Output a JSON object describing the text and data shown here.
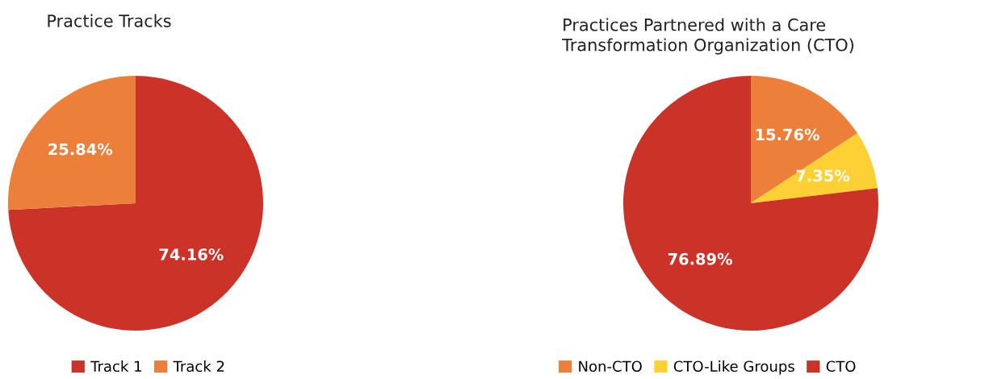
{
  "chart_data": [
    {
      "type": "pie",
      "title": "Practice Tracks",
      "categories": [
        "Track 1",
        "Track 2"
      ],
      "values": [
        74.16,
        25.84
      ],
      "colors": [
        "#cc3328",
        "#ec7f3a"
      ],
      "value_labels": [
        "74.16%",
        "25.84%"
      ],
      "legend": "bottom"
    },
    {
      "type": "pie",
      "title": "Practices Partnered with a Care\nTransformation Organization (CTO)",
      "categories": [
        "Non-CTO",
        "CTO-Like Groups",
        "CTO"
      ],
      "values": [
        15.76,
        7.35,
        76.89
      ],
      "colors": [
        "#ec7f3a",
        "#fdd033",
        "#cc3328"
      ],
      "value_labels": [
        "15.76%",
        "7.35%",
        "76.89%"
      ],
      "legend": "bottom"
    }
  ]
}
